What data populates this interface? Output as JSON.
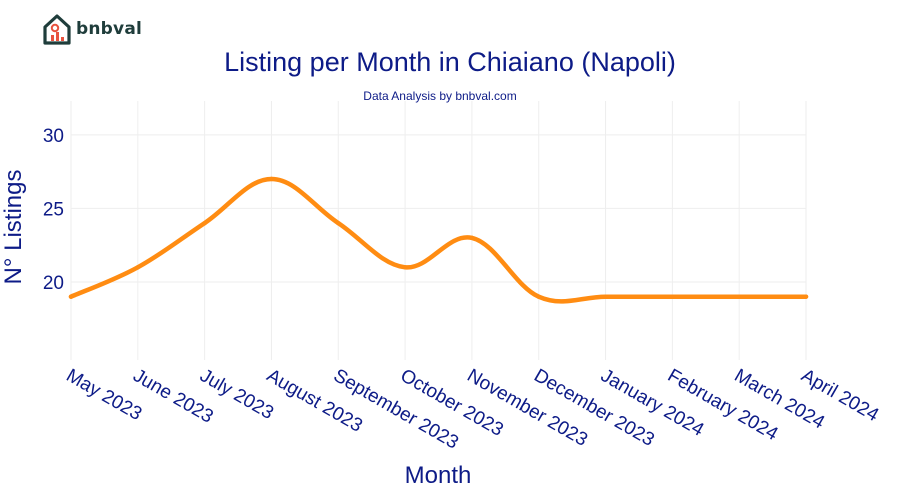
{
  "brand": {
    "name": "bnbval"
  },
  "chart_data": {
    "type": "line",
    "title": "Listing per Month in Chiaiano (Napoli)",
    "subtitle": "Data Analysis by bnbval.com",
    "xlabel": "Month",
    "ylabel": "N° Listings",
    "categories": [
      "May 2023",
      "June 2023",
      "July 2023",
      "August 2023",
      "September 2023",
      "October 2023",
      "November 2023",
      "December 2023",
      "January 2024",
      "February 2024",
      "March 2024",
      "April 2024"
    ],
    "series": [
      {
        "name": "Listings",
        "values": [
          19,
          21,
          24,
          27,
          24,
          21,
          23,
          19,
          19,
          19,
          19,
          19
        ]
      }
    ],
    "ylim": [
      14.7,
      32.3
    ],
    "yticks": [
      20,
      25,
      30
    ],
    "grid": true,
    "line_color": "#ff8c12"
  }
}
